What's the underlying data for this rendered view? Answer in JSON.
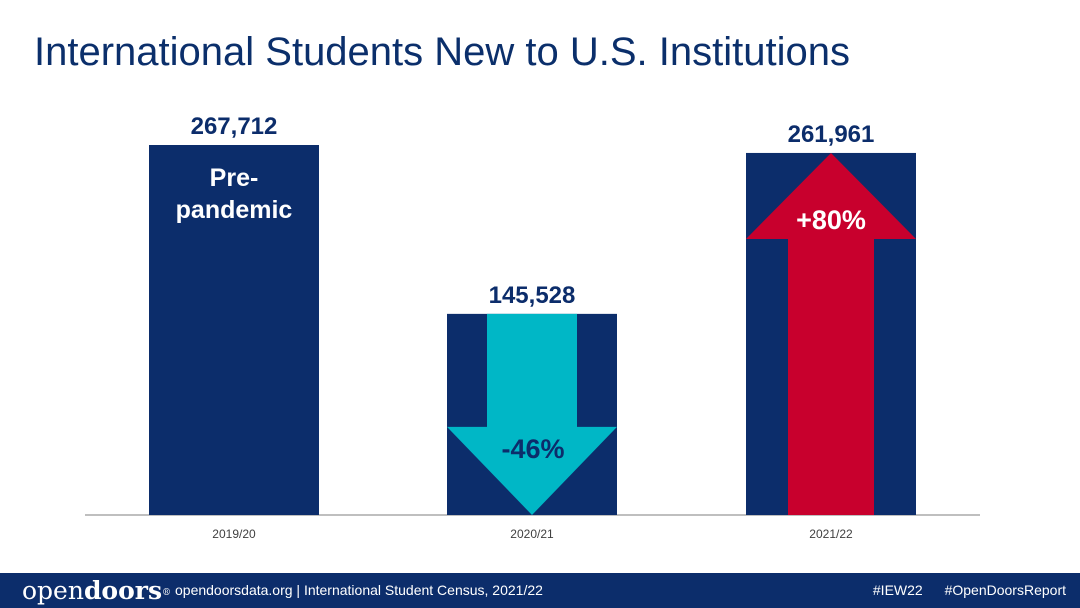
{
  "title": "International Students New to U.S. Institutions",
  "chart_data": {
    "type": "bar",
    "categories": [
      "2019/20",
      "2020/21",
      "2021/22"
    ],
    "values": [
      267712,
      145528,
      261961
    ],
    "value_labels": [
      "267,712",
      "145,528",
      "261,961"
    ],
    "ylim": [
      0,
      267712
    ],
    "grid": false,
    "annotations": [
      {
        "category": "2019/20",
        "text_lines": [
          "Pre-",
          "pandemic"
        ]
      },
      {
        "category": "2020/21",
        "text": "-46%",
        "arrow": "down",
        "color": "#00b7c6"
      },
      {
        "category": "2021/22",
        "text": "+80%",
        "arrow": "up",
        "color": "#c8002d"
      }
    ],
    "colors": {
      "bar": "#0c2d6b",
      "axis": "#7f7f7f",
      "label": "#0c2d6b"
    }
  },
  "footer": {
    "logo_light": "open",
    "logo_bold": "doors",
    "logo_mark": "®",
    "source": "opendoorsdata.org  |  International Student Census, 2021/22",
    "tags": [
      "#IEW22",
      "#OpenDoorsReport"
    ]
  }
}
